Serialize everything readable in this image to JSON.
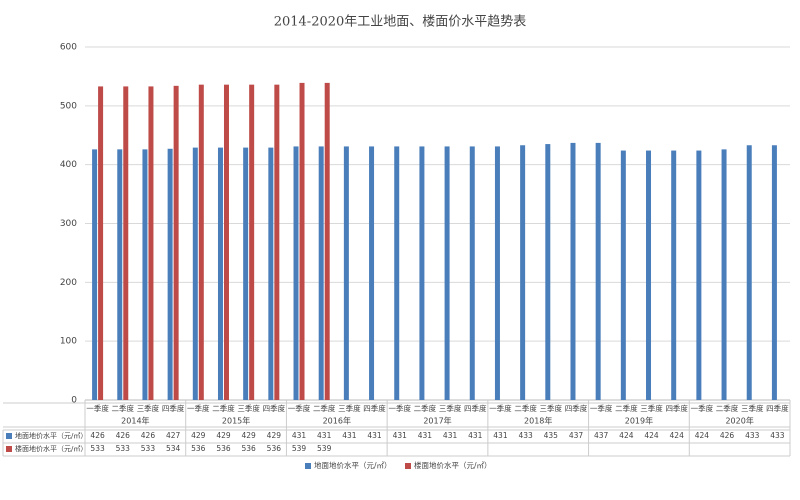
{
  "chart_data": {
    "type": "bar",
    "title": "2014-2020年工业地面、楼面价水平趋势表",
    "categories": [
      "一季度",
      "二季度",
      "三季度",
      "四季度",
      "一季度",
      "二季度",
      "三季度",
      "四季度",
      "一季度",
      "二季度",
      "三季度",
      "四季度",
      "一季度",
      "二季度",
      "三季度",
      "四季度",
      "一季度",
      "二季度",
      "三季度",
      "四季度",
      "一季度",
      "二季度",
      "三季度",
      "四季度",
      "一季度",
      "二季度",
      "三季度",
      "四季度"
    ],
    "groups": [
      "2014年",
      "2015年",
      "2016年",
      "2017年",
      "2018年",
      "2019年",
      "2020年"
    ],
    "series": [
      {
        "name": "地面地价水平（元/㎡）",
        "color": "#4a7ebb",
        "values": [
          426,
          426,
          426,
          427,
          429,
          429,
          429,
          429,
          431,
          431,
          431,
          431,
          431,
          431,
          431,
          431,
          431,
          433,
          435,
          437,
          437,
          424,
          424,
          424,
          424,
          426,
          433,
          433
        ]
      },
      {
        "name": "楼面地价水平（元/㎡）",
        "color": "#be4b48",
        "values": [
          533,
          533,
          533,
          534,
          536,
          536,
          536,
          536,
          539,
          539,
          null,
          null,
          null,
          null,
          null,
          null,
          null,
          null,
          null,
          null,
          null,
          null,
          null,
          null,
          null,
          null,
          null,
          null
        ]
      }
    ],
    "ylim": [
      0,
      600
    ],
    "yticks": [
      0,
      100,
      200,
      300,
      400,
      500,
      600
    ],
    "grid": true
  }
}
